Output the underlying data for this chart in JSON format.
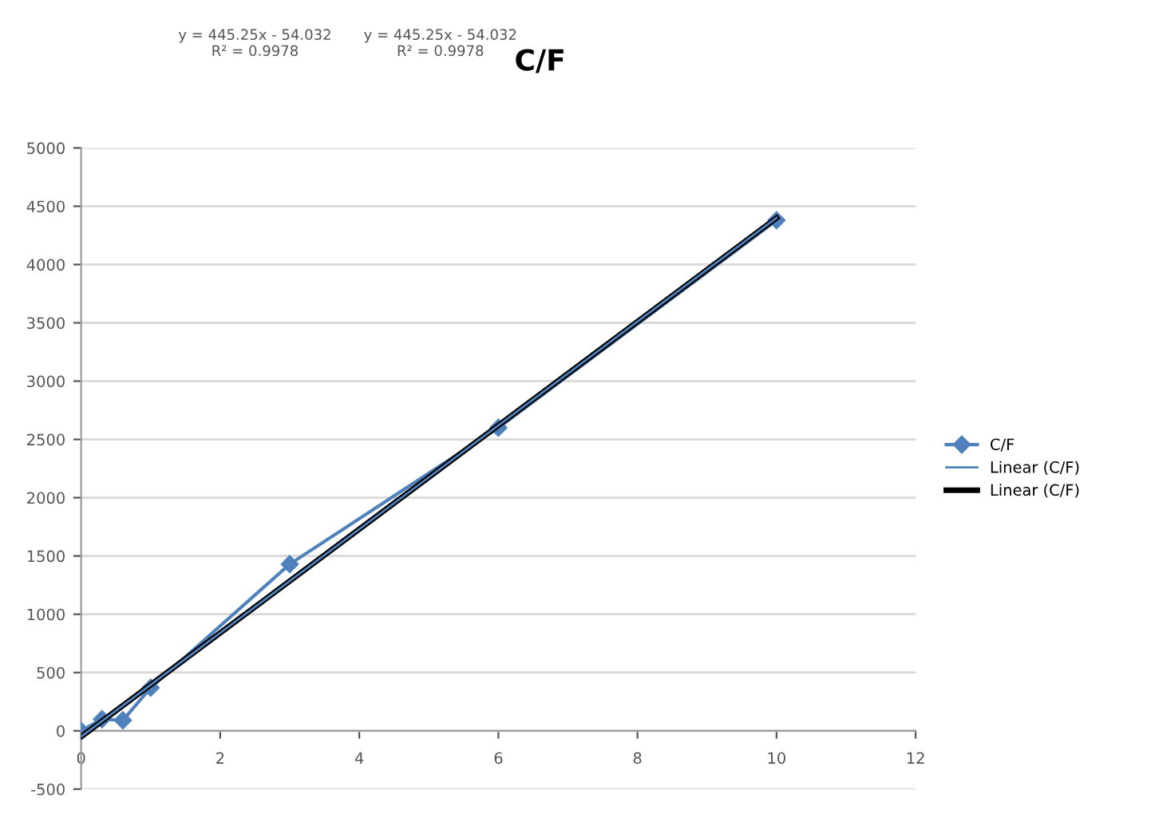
{
  "chart_data": {
    "type": "line",
    "title": "C/F",
    "annotations": [
      "y = 445.25x - 54.032\nR² = 0.9978",
      "y = 445.25x - 54.032\nR² = 0.9978"
    ],
    "series": [
      {
        "name": "C/F",
        "color": "#4f81bd",
        "x": [
          0,
          0.3,
          0.6,
          1,
          3,
          6,
          10
        ],
        "values": [
          0,
          100,
          90,
          370,
          1430,
          2600,
          4380
        ],
        "marker": "diamond"
      },
      {
        "name": "Linear (C/F)",
        "color": "#4f81bd",
        "x": [
          0,
          10
        ],
        "values": [
          -50,
          4400
        ],
        "marker": "none"
      },
      {
        "name": "Linear (C/F)",
        "color": "#000000",
        "x": [
          0,
          10
        ],
        "values": [
          -50,
          4400
        ],
        "marker": "none"
      }
    ],
    "xlim": [
      0,
      12
    ],
    "xticks": [
      0,
      2,
      4,
      6,
      8,
      10,
      12
    ],
    "ylim": [
      -500,
      5000
    ],
    "yticks": [
      -500,
      0,
      500,
      1000,
      1500,
      2000,
      2500,
      3000,
      3500,
      4000,
      4500,
      5000
    ],
    "grid": "y",
    "legend": "right"
  }
}
